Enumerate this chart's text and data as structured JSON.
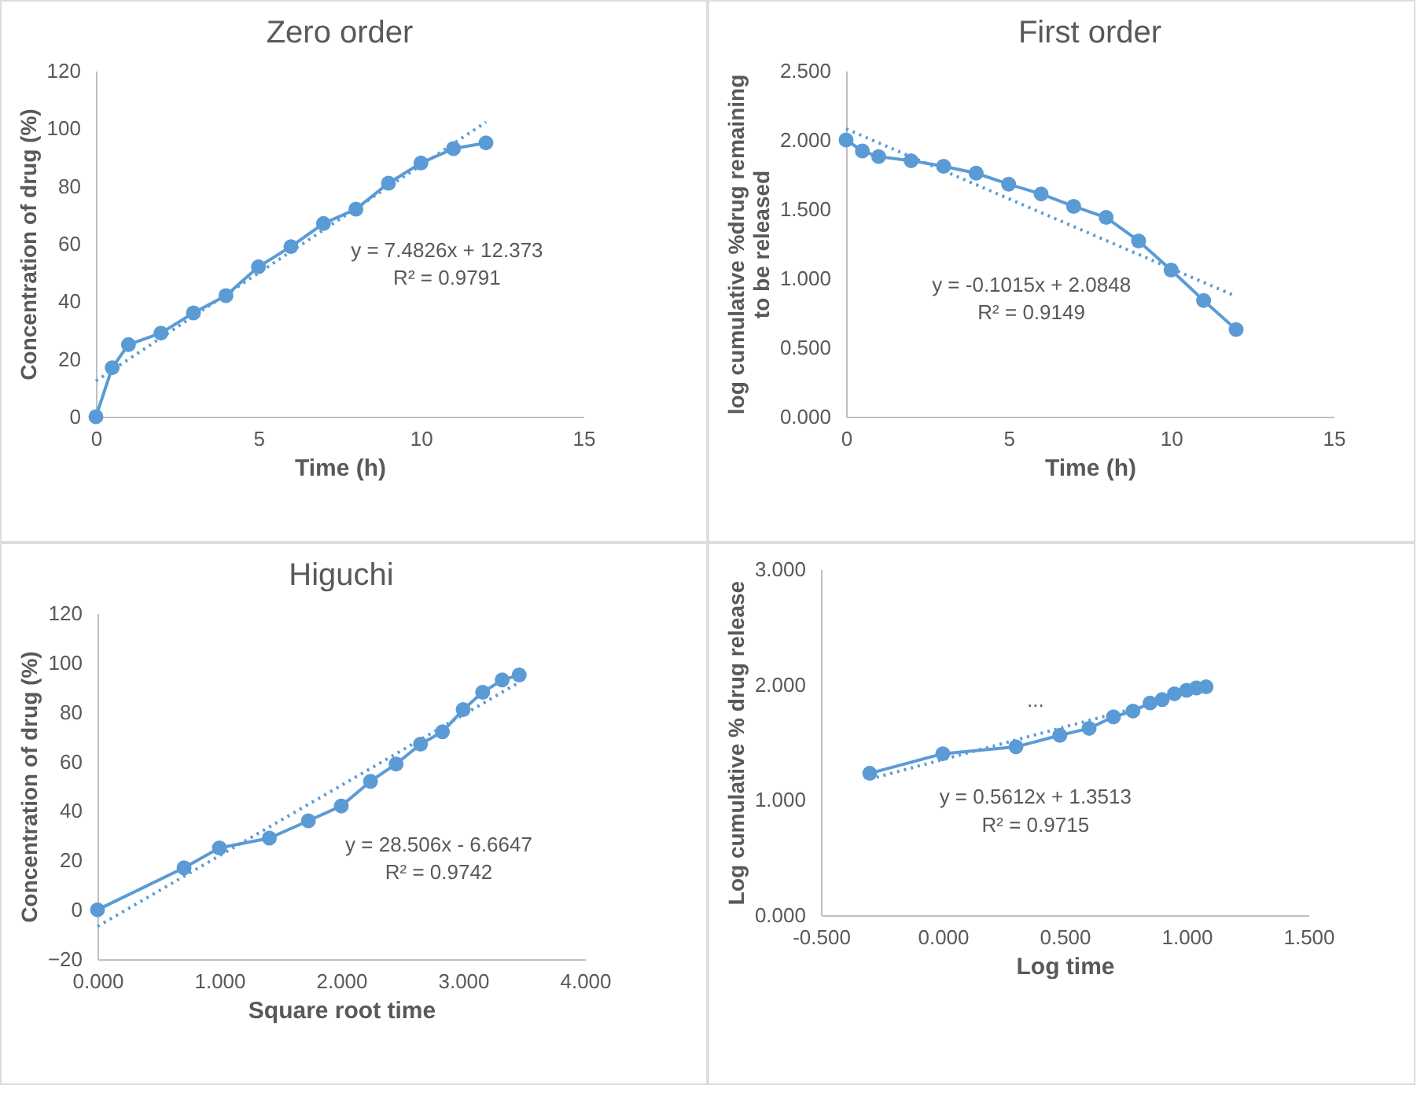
{
  "chart_data": [
    {
      "type": "line",
      "title": "Zero order",
      "xlabel": "Time (h)",
      "ylabel": "Concentration of drug (%)",
      "xlim": [
        0,
        15
      ],
      "xticks": [
        0,
        5,
        10,
        15
      ],
      "ylim": [
        0,
        120
      ],
      "yticks": [
        0,
        20,
        40,
        60,
        80,
        100,
        120
      ],
      "grid": false,
      "marker": "circle",
      "annotations": [
        "y = 7.4826x + 12.373",
        "R² = 0.9791"
      ],
      "series": [
        {
          "color": "#5b9bd5",
          "x": [
            0,
            0.5,
            1,
            2,
            3,
            4,
            5,
            6,
            7,
            8,
            9,
            10,
            11,
            12
          ],
          "values": [
            0,
            17,
            25,
            29,
            36,
            42,
            52,
            59,
            67,
            72,
            81,
            88,
            93,
            95
          ]
        },
        {
          "type": "line",
          "color": "#5b9bd5",
          "marker": "none",
          "line_style": "dotted",
          "x": [
            0,
            12
          ],
          "values": [
            12.4,
            102.2
          ]
        }
      ]
    },
    {
      "type": "line",
      "title": "First order",
      "xlabel": "Time (h)",
      "ylabel": "log cumulative %drug remaining to be released",
      "xlim": [
        0,
        15
      ],
      "xticks": [
        0,
        5,
        10,
        15
      ],
      "ylim": [
        0,
        2.5
      ],
      "yticks": [
        {
          "value": 0,
          "label": "0.000"
        },
        {
          "value": 0.5,
          "label": "0.500"
        },
        {
          "value": 1,
          "label": "1.000"
        },
        {
          "value": 1.5,
          "label": "1.500"
        },
        {
          "value": 2,
          "label": "2.000"
        },
        {
          "value": 2.5,
          "label": "2.500"
        }
      ],
      "grid": false,
      "marker": "circle",
      "annotations": [
        "y = -0.1015x + 2.0848",
        "R² = 0.9149"
      ],
      "series": [
        {
          "color": "#5b9bd5",
          "x": [
            0,
            0.5,
            1,
            2,
            3,
            4,
            5,
            6,
            7,
            8,
            9,
            10,
            11,
            12
          ],
          "values": [
            2.0,
            1.92,
            1.88,
            1.85,
            1.81,
            1.76,
            1.68,
            1.61,
            1.52,
            1.44,
            1.27,
            1.06,
            0.84,
            0.63
          ]
        },
        {
          "type": "line",
          "color": "#5b9bd5",
          "marker": "none",
          "line_style": "dotted",
          "x": [
            0,
            12
          ],
          "values": [
            2.08,
            0.87
          ]
        }
      ]
    },
    {
      "type": "line",
      "title": "Higuchi",
      "xlabel": "Square root time",
      "ylabel": "Concentration of drug (%)",
      "xlim": [
        0,
        4
      ],
      "xticks": [
        {
          "value": 0,
          "label": "0.000"
        },
        {
          "value": 1,
          "label": "1.000"
        },
        {
          "value": 2,
          "label": "2.000"
        },
        {
          "value": 3,
          "label": "3.000"
        },
        {
          "value": 4,
          "label": "4.000"
        }
      ],
      "ylim": [
        -20,
        120
      ],
      "yticks": [
        -20,
        0,
        20,
        40,
        60,
        80,
        100,
        120
      ],
      "grid": false,
      "marker": "circle",
      "annotations": [
        "y = 28.506x - 6.6647",
        "R² = 0.9742"
      ],
      "series": [
        {
          "color": "#5b9bd5",
          "x": [
            0,
            0.71,
            1,
            1.41,
            1.73,
            2,
            2.24,
            2.45,
            2.65,
            2.83,
            3,
            3.16,
            3.32,
            3.46
          ],
          "values": [
            0,
            17,
            25,
            29,
            36,
            42,
            52,
            59,
            67,
            72,
            81,
            88,
            93,
            95
          ]
        },
        {
          "type": "line",
          "color": "#5b9bd5",
          "marker": "none",
          "line_style": "dotted",
          "x": [
            0,
            3.46
          ],
          "values": [
            -6.7,
            92.0
          ]
        }
      ]
    },
    {
      "type": "line",
      "xlabel": "Log time",
      "ylabel": "Log cumulative % drug release",
      "xlim": [
        -0.5,
        1.5
      ],
      "xticks": [
        {
          "value": -0.5,
          "label": "-0.500"
        },
        {
          "value": 0,
          "label": "0.000"
        },
        {
          "value": 0.5,
          "label": "0.500"
        },
        {
          "value": 1,
          "label": "1.000"
        },
        {
          "value": 1.5,
          "label": "1.500"
        }
      ],
      "ylim": [
        0,
        3
      ],
      "yticks": [
        {
          "value": 0,
          "label": "0.000"
        },
        {
          "value": 1,
          "label": "1.000"
        },
        {
          "value": 2,
          "label": "2.000"
        },
        {
          "value": 3,
          "label": "3.000"
        }
      ],
      "grid": false,
      "marker": "circle",
      "annotations": [
        "...",
        "y = 0.5612x + 1.3513",
        "R² = 0.9715"
      ],
      "series": [
        {
          "color": "#5b9bd5",
          "x": [
            -0.3,
            0,
            0.3,
            0.48,
            0.6,
            0.7,
            0.78,
            0.85,
            0.9,
            0.95,
            1.0,
            1.04,
            1.08
          ],
          "values": [
            1.23,
            1.4,
            1.46,
            1.56,
            1.62,
            1.72,
            1.77,
            1.84,
            1.87,
            1.92,
            1.95,
            1.97,
            1.98
          ]
        },
        {
          "type": "line",
          "color": "#5b9bd5",
          "marker": "none",
          "line_style": "dotted",
          "x": [
            -0.3,
            1.08
          ],
          "values": [
            1.18,
            1.96
          ]
        }
      ]
    }
  ]
}
